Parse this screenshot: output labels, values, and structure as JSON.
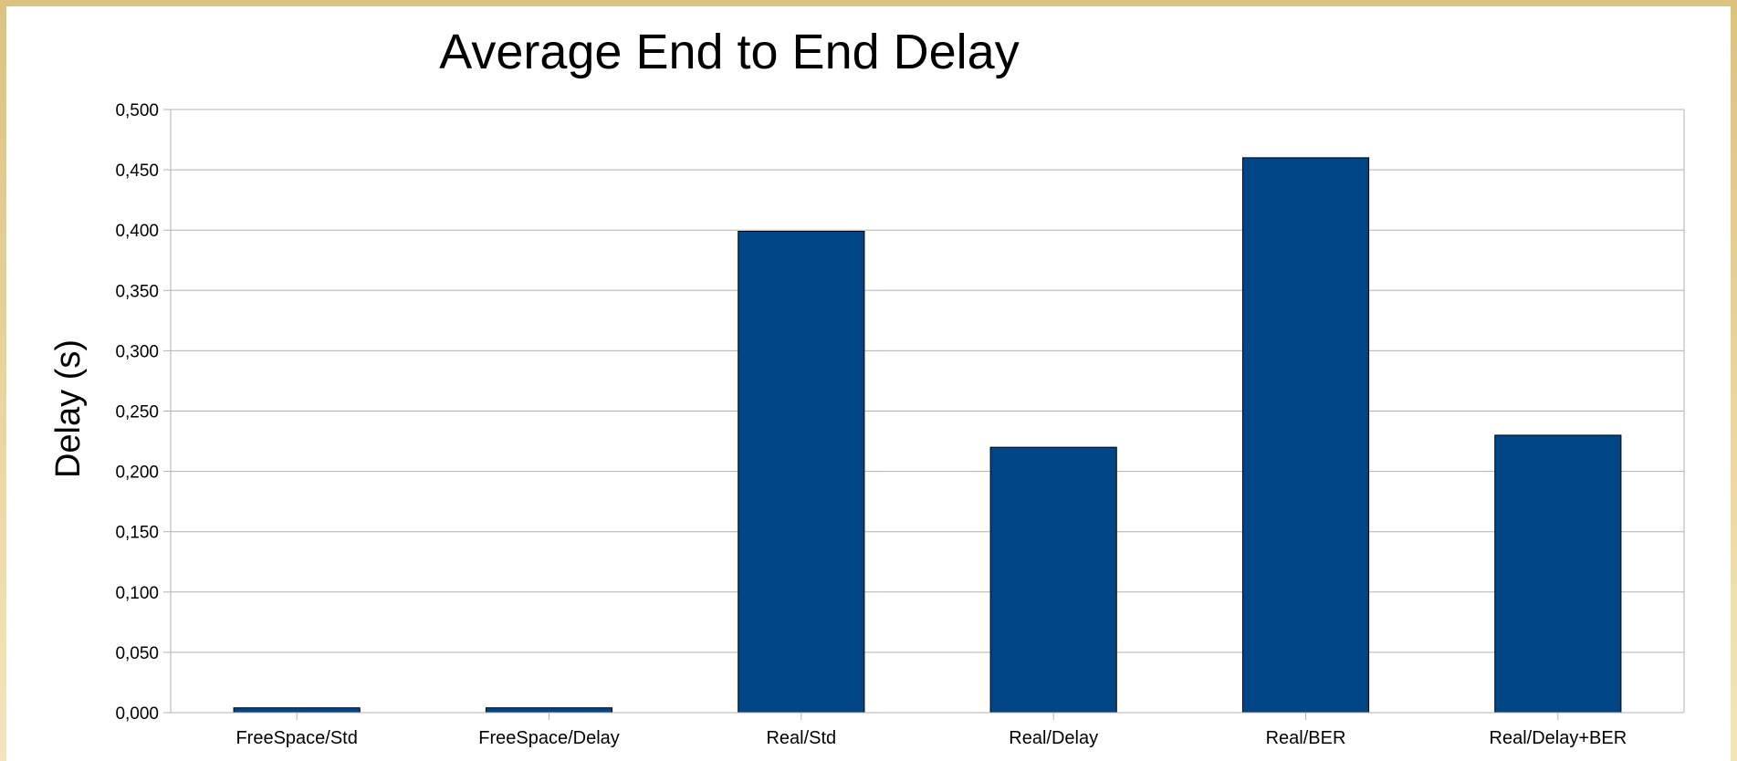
{
  "chart_data": {
    "type": "bar",
    "title": "Average End to End Delay",
    "xlabel": "",
    "ylabel": "Delay (s)",
    "categories": [
      "FreeSpace/Std",
      "FreeSpace/Delay",
      "Real/Std",
      "Real/Delay",
      "Real/BER",
      "Real/Delay+BER"
    ],
    "values": [
      0.004,
      0.004,
      0.399,
      0.22,
      0.46,
      0.23
    ],
    "ylim": [
      0,
      0.5
    ],
    "yticks": [
      "0,000",
      "0,050",
      "0,100",
      "0,150",
      "0,200",
      "0,250",
      "0,300",
      "0,350",
      "0,400",
      "0,450",
      "0,500"
    ],
    "grid": true,
    "legend": "none",
    "colors": {
      "bar": "#004586",
      "bar_stroke": "#000000",
      "grid": "#b3b3b3",
      "axis": "#b3b3b3",
      "frame": "#dcc27e"
    }
  }
}
